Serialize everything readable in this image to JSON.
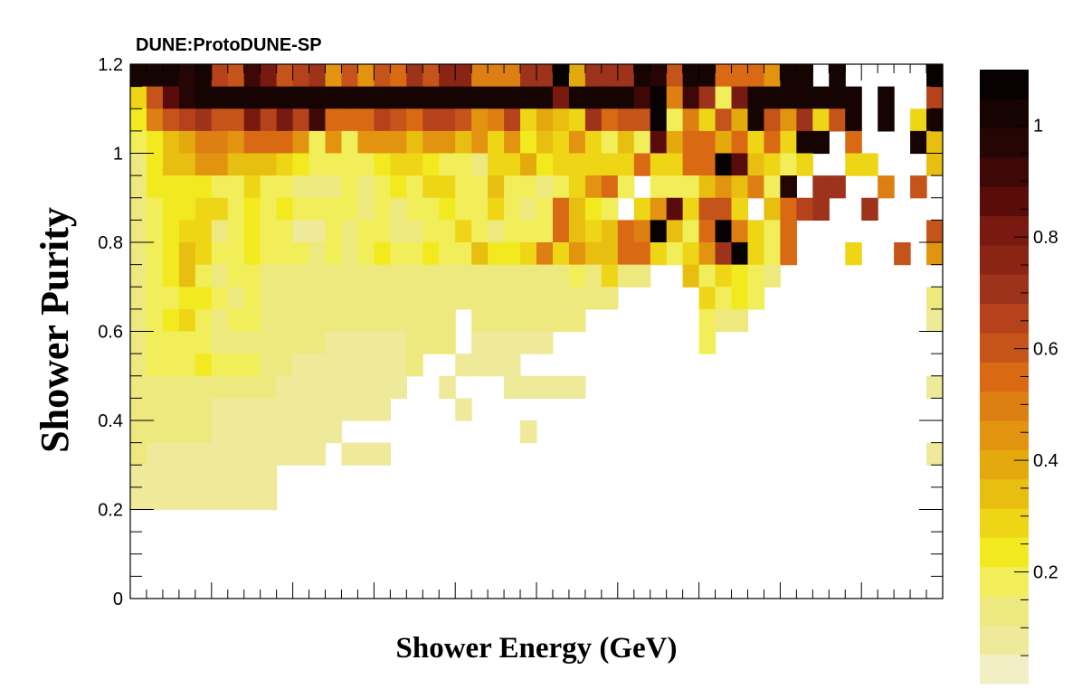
{
  "chart_data": {
    "type": "heatmap",
    "title": "DUNE:ProtoDUNE-SP",
    "xlabel": "Shower Energy (GeV)",
    "ylabel": "Shower Purity",
    "ylim": [
      0,
      1.2
    ],
    "y_ticks": [
      "0",
      "0.2",
      "0.4",
      "0.6",
      "0.8",
      "1",
      "1.2"
    ],
    "x_ticks": [],
    "x_bins": 50,
    "y_bins": 24,
    "z_ticks": [
      "0.2",
      "0.4",
      "0.6",
      "0.8",
      "1"
    ],
    "zlim": [
      0,
      1.1
    ],
    "palette": [
      "#f2efc4",
      "#eeea9a",
      "#ede97e",
      "#f1ee5a",
      "#f2ea1f",
      "#eed616",
      "#e8be10",
      "#e4a90c",
      "#e29410",
      "#de7f13",
      "#d96a13",
      "#c5541b",
      "#b6421c",
      "#9d331a",
      "#8a2514",
      "#781a10",
      "#5a0c0b",
      "#3e0807",
      "#260605",
      "#160403",
      "#080101"
    ],
    "grid": false,
    "legend": "color-scale-right",
    "rows_note": "rows listed from top (purity 1.0-1.05) to bottom (0.0-0.05); values are bin contents, null = empty",
    "rows": [
      [
        1.0,
        1.0,
        1.0,
        0.95,
        1.0,
        0.65,
        0.6,
        0.9,
        0.8,
        0.6,
        0.65,
        0.7,
        0.45,
        0.6,
        0.45,
        0.6,
        0.55,
        0.7,
        0.6,
        0.75,
        0.75,
        0.5,
        0.5,
        0.5,
        0.7,
        0.7,
        1.1,
        0.4,
        0.7,
        0.7,
        0.7,
        1.0,
        0.95,
        0.6,
        1.0,
        1.0,
        0.55,
        0.55,
        0.55,
        0.45,
        1.0,
        1.0,
        null,
        1.0,
        null,
        null,
        null,
        null,
        null,
        1.05
      ],
      [
        0.3,
        0.6,
        0.85,
        0.95,
        1.0,
        1.0,
        1.0,
        1.0,
        1.0,
        1.0,
        1.0,
        1.0,
        1.0,
        1.0,
        1.0,
        1.0,
        1.0,
        1.0,
        1.0,
        1.0,
        1.0,
        1.0,
        1.0,
        1.0,
        1.0,
        1.0,
        0.8,
        1.0,
        1.0,
        1.0,
        1.0,
        0.9,
        1.05,
        0.5,
        0.9,
        0.7,
        0.2,
        0.8,
        1.0,
        1.0,
        1.0,
        1.0,
        1.0,
        1.0,
        1.0,
        null,
        1.0,
        null,
        null,
        0.65
      ],
      [
        0.25,
        0.5,
        0.6,
        0.65,
        0.7,
        0.6,
        0.6,
        0.8,
        0.65,
        0.8,
        0.65,
        0.9,
        0.55,
        0.55,
        0.55,
        0.65,
        0.6,
        0.55,
        0.65,
        0.65,
        0.6,
        0.45,
        0.5,
        0.65,
        0.3,
        0.4,
        0.35,
        0.3,
        0.7,
        0.55,
        0.6,
        0.6,
        1.1,
        0.2,
        0.5,
        0.3,
        0.6,
        0.4,
        1.0,
        0.6,
        0.45,
        0.7,
        0.3,
        0.6,
        1.0,
        null,
        1.0,
        null,
        0.3,
        1.0
      ],
      [
        0.2,
        0.25,
        0.35,
        0.4,
        0.5,
        0.5,
        0.45,
        0.55,
        0.55,
        0.55,
        0.45,
        0.2,
        0.45,
        0.2,
        0.45,
        0.45,
        0.45,
        0.35,
        0.45,
        0.45,
        0.35,
        0.45,
        0.3,
        0.45,
        0.25,
        0.35,
        0.3,
        0.45,
        0.3,
        0.2,
        0.35,
        0.2,
        0.85,
        0.4,
        0.55,
        0.55,
        0.4,
        0.55,
        0.3,
        0.55,
        0.3,
        1.0,
        1.0,
        null,
        0.55,
        null,
        null,
        null,
        1.0,
        0.35
      ],
      [
        0.15,
        0.25,
        0.35,
        0.35,
        0.45,
        0.45,
        0.35,
        0.35,
        0.35,
        0.3,
        0.25,
        0.2,
        0.2,
        0.2,
        0.2,
        0.25,
        0.3,
        0.3,
        0.25,
        0.2,
        0.2,
        0.15,
        0.3,
        0.3,
        0.4,
        0.25,
        0.3,
        0.3,
        0.3,
        0.3,
        0.3,
        0.55,
        0.3,
        0.3,
        0.55,
        0.55,
        1.05,
        0.85,
        0.35,
        0.3,
        0.2,
        0.3,
        null,
        null,
        0.3,
        0.3,
        null,
        null,
        null,
        0.35
      ],
      [
        0.15,
        0.25,
        0.25,
        0.25,
        0.25,
        0.2,
        0.2,
        0.3,
        0.2,
        0.2,
        0.15,
        0.15,
        0.15,
        0.2,
        0.15,
        0.2,
        0.25,
        0.2,
        0.3,
        0.3,
        0.2,
        0.2,
        0.35,
        0.2,
        0.2,
        0.15,
        0.2,
        0.3,
        0.45,
        0.55,
        0.2,
        null,
        0.2,
        0.2,
        0.2,
        0.35,
        0.45,
        0.35,
        0.5,
        0.2,
        0.95,
        null,
        0.7,
        0.7,
        null,
        null,
        0.5,
        null,
        0.6,
        null
      ],
      [
        0.15,
        0.2,
        0.25,
        0.25,
        0.3,
        0.3,
        0.2,
        0.25,
        0.2,
        0.25,
        0.2,
        0.2,
        0.2,
        0.2,
        0.15,
        0.2,
        0.15,
        0.2,
        0.2,
        0.25,
        0.2,
        0.2,
        0.3,
        0.2,
        0.15,
        0.2,
        0.55,
        0.35,
        0.25,
        0.2,
        null,
        0.3,
        0.45,
        0.85,
        0.3,
        0.6,
        0.6,
        0.3,
        null,
        0.35,
        0.55,
        0.65,
        0.7,
        null,
        null,
        0.7,
        null,
        null,
        null,
        null
      ],
      [
        0.15,
        0.2,
        0.25,
        0.3,
        0.3,
        0.15,
        0.2,
        0.25,
        0.2,
        0.2,
        0.1,
        0.1,
        0.2,
        0.15,
        0.2,
        0.2,
        0.15,
        0.15,
        0.2,
        0.2,
        0.3,
        0.2,
        0.15,
        0.2,
        0.2,
        0.2,
        0.55,
        0.35,
        0.3,
        0.35,
        0.55,
        0.5,
        1.05,
        0.35,
        0.2,
        0.55,
        1.05,
        0.5,
        0.3,
        0.2,
        0.55,
        null,
        null,
        null,
        null,
        null,
        null,
        null,
        null,
        0.6
      ],
      [
        0.15,
        0.2,
        0.25,
        0.35,
        0.3,
        0.2,
        0.2,
        0.25,
        0.2,
        0.2,
        0.2,
        0.15,
        0.2,
        0.15,
        0.2,
        0.25,
        0.2,
        0.2,
        0.25,
        0.2,
        0.2,
        0.35,
        0.25,
        0.25,
        0.3,
        0.5,
        0.3,
        0.45,
        0.35,
        0.35,
        0.55,
        0.55,
        0.3,
        0.2,
        0.3,
        0.45,
        0.7,
        1.05,
        0.3,
        0.2,
        0.55,
        null,
        null,
        null,
        0.3,
        null,
        null,
        0.6,
        null,
        0.45
      ],
      [
        0.15,
        0.2,
        0.25,
        0.35,
        0.2,
        0.15,
        0.2,
        0.2,
        0.15,
        0.15,
        0.15,
        0.15,
        0.15,
        0.15,
        0.15,
        0.15,
        0.15,
        0.15,
        0.15,
        0.15,
        0.15,
        0.15,
        0.15,
        0.15,
        0.15,
        0.15,
        0.15,
        0.2,
        0.15,
        0.3,
        0.15,
        0.15,
        null,
        null,
        0.35,
        0.2,
        0.3,
        0.25,
        0.2,
        0.15,
        null,
        null,
        null,
        null,
        null,
        null,
        null,
        null,
        null,
        null
      ],
      [
        0.15,
        0.2,
        0.2,
        0.25,
        0.25,
        0.2,
        0.15,
        0.2,
        0.15,
        0.15,
        0.15,
        0.15,
        0.15,
        0.15,
        0.15,
        0.15,
        0.15,
        0.15,
        0.15,
        0.15,
        0.15,
        0.15,
        0.15,
        0.15,
        0.15,
        0.15,
        0.15,
        0.15,
        0.15,
        0.15,
        null,
        null,
        null,
        null,
        null,
        0.3,
        0.2,
        0.25,
        0.2,
        null,
        null,
        null,
        null,
        null,
        null,
        null,
        null,
        null,
        null,
        0.15
      ],
      [
        0.15,
        0.2,
        0.25,
        0.3,
        0.2,
        0.15,
        0.2,
        0.2,
        0.15,
        0.15,
        0.15,
        0.15,
        0.15,
        0.15,
        0.15,
        0.15,
        0.15,
        0.15,
        0.15,
        0.15,
        null,
        0.15,
        0.15,
        0.15,
        0.15,
        0.15,
        0.15,
        0.15,
        null,
        null,
        null,
        null,
        null,
        null,
        null,
        0.2,
        0.15,
        0.15,
        null,
        null,
        null,
        null,
        null,
        null,
        null,
        null,
        null,
        null,
        null,
        0.1
      ],
      [
        0.15,
        0.2,
        0.2,
        0.2,
        0.2,
        0.15,
        0.15,
        0.15,
        0.15,
        0.15,
        0.15,
        0.15,
        0.1,
        0.1,
        0.1,
        0.1,
        0.1,
        0.15,
        0.15,
        0.15,
        null,
        0.1,
        0.1,
        0.1,
        0.1,
        0.1,
        null,
        null,
        null,
        null,
        null,
        null,
        null,
        null,
        null,
        0.2,
        null,
        null,
        null,
        null,
        null,
        null,
        null,
        null,
        null,
        null,
        null,
        null,
        null,
        null
      ],
      [
        0.15,
        0.2,
        0.2,
        0.2,
        0.25,
        0.2,
        0.2,
        0.2,
        0.15,
        0.15,
        0.1,
        0.1,
        0.1,
        0.1,
        0.1,
        0.1,
        0.1,
        0.15,
        null,
        null,
        0.1,
        0.1,
        0.1,
        0.1,
        null,
        null,
        null,
        null,
        null,
        null,
        null,
        null,
        null,
        null,
        null,
        null,
        null,
        null,
        null,
        null,
        null,
        null,
        null,
        null,
        null,
        null,
        null,
        null,
        null,
        null
      ],
      [
        0.15,
        0.15,
        0.15,
        0.15,
        0.15,
        0.15,
        0.15,
        0.15,
        0.15,
        0.1,
        0.1,
        0.1,
        0.1,
        0.1,
        0.1,
        0.1,
        0.1,
        null,
        null,
        0.1,
        null,
        null,
        null,
        0.1,
        0.1,
        0.1,
        0.1,
        0.1,
        null,
        null,
        null,
        null,
        null,
        null,
        null,
        null,
        null,
        null,
        null,
        null,
        null,
        null,
        null,
        null,
        null,
        null,
        null,
        null,
        null,
        0.1
      ],
      [
        0.15,
        0.15,
        0.15,
        0.15,
        0.15,
        0.1,
        0.1,
        0.1,
        0.1,
        0.1,
        0.1,
        0.1,
        0.1,
        0.1,
        0.1,
        0.1,
        null,
        null,
        null,
        null,
        0.1,
        null,
        null,
        null,
        null,
        null,
        null,
        null,
        null,
        null,
        null,
        null,
        null,
        null,
        null,
        null,
        null,
        null,
        null,
        null,
        null,
        null,
        null,
        null,
        null,
        null,
        null,
        null,
        null,
        null
      ],
      [
        0.15,
        0.15,
        0.15,
        0.15,
        0.15,
        0.1,
        0.1,
        0.1,
        0.1,
        0.1,
        0.1,
        0.1,
        0.1,
        null,
        null,
        null,
        null,
        null,
        null,
        null,
        null,
        null,
        null,
        null,
        0.1,
        null,
        null,
        null,
        null,
        null,
        null,
        null,
        null,
        null,
        null,
        null,
        null,
        null,
        null,
        null,
        null,
        null,
        null,
        null,
        null,
        null,
        null,
        null,
        null,
        null
      ],
      [
        0.15,
        0.1,
        0.1,
        0.1,
        0.1,
        0.1,
        0.1,
        0.1,
        0.1,
        0.1,
        0.1,
        0.1,
        null,
        0.1,
        0.1,
        0.1,
        null,
        null,
        null,
        null,
        null,
        null,
        null,
        null,
        null,
        null,
        null,
        null,
        null,
        null,
        null,
        null,
        null,
        null,
        null,
        null,
        null,
        null,
        null,
        null,
        null,
        null,
        null,
        null,
        null,
        null,
        null,
        null,
        null,
        0.1
      ],
      [
        0.1,
        0.1,
        0.1,
        0.1,
        0.1,
        0.1,
        0.1,
        0.1,
        0.1,
        null,
        null,
        null,
        null,
        null,
        null,
        null,
        null,
        null,
        null,
        null,
        null,
        null,
        null,
        null,
        null,
        null,
        null,
        null,
        null,
        null,
        null,
        null,
        null,
        null,
        null,
        null,
        null,
        null,
        null,
        null,
        null,
        null,
        null,
        null,
        null,
        null,
        null,
        null,
        null,
        null
      ],
      [
        0.1,
        0.1,
        0.1,
        0.1,
        0.1,
        0.1,
        0.1,
        0.1,
        0.1,
        null,
        null,
        null,
        null,
        null,
        null,
        null,
        null,
        null,
        null,
        null,
        null,
        null,
        null,
        null,
        null,
        null,
        null,
        null,
        null,
        null,
        null,
        null,
        null,
        null,
        null,
        null,
        null,
        null,
        null,
        null,
        null,
        null,
        null,
        null,
        null,
        null,
        null,
        null,
        null,
        null
      ],
      [
        null,
        null,
        null,
        null,
        null,
        null,
        null,
        null,
        null,
        null,
        null,
        null,
        null,
        null,
        null,
        null,
        null,
        null,
        null,
        null,
        null,
        null,
        null,
        null,
        null,
        null,
        null,
        null,
        null,
        null,
        null,
        null,
        null,
        null,
        null,
        null,
        null,
        null,
        null,
        null,
        null,
        null,
        null,
        null,
        null,
        null,
        null,
        null,
        null,
        null
      ],
      [
        null,
        null,
        null,
        null,
        null,
        null,
        null,
        null,
        null,
        null,
        null,
        null,
        null,
        null,
        null,
        null,
        null,
        null,
        null,
        null,
        null,
        null,
        null,
        null,
        null,
        null,
        null,
        null,
        null,
        null,
        null,
        null,
        null,
        null,
        null,
        null,
        null,
        null,
        null,
        null,
        null,
        null,
        null,
        null,
        null,
        null,
        null,
        null,
        null,
        null
      ],
      [
        null,
        null,
        null,
        null,
        null,
        null,
        null,
        null,
        null,
        null,
        null,
        null,
        null,
        null,
        null,
        null,
        null,
        null,
        null,
        null,
        null,
        null,
        null,
        null,
        null,
        null,
        null,
        null,
        null,
        null,
        null,
        null,
        null,
        null,
        null,
        null,
        null,
        null,
        null,
        null,
        null,
        null,
        null,
        null,
        null,
        null,
        null,
        null,
        null,
        null
      ],
      [
        null,
        null,
        null,
        null,
        null,
        null,
        null,
        null,
        null,
        null,
        null,
        null,
        null,
        null,
        null,
        null,
        null,
        null,
        null,
        null,
        null,
        null,
        null,
        null,
        null,
        null,
        null,
        null,
        null,
        null,
        null,
        null,
        null,
        null,
        null,
        null,
        null,
        null,
        null,
        null,
        null,
        null,
        null,
        null,
        null,
        null,
        null,
        null,
        null,
        null
      ]
    ]
  }
}
